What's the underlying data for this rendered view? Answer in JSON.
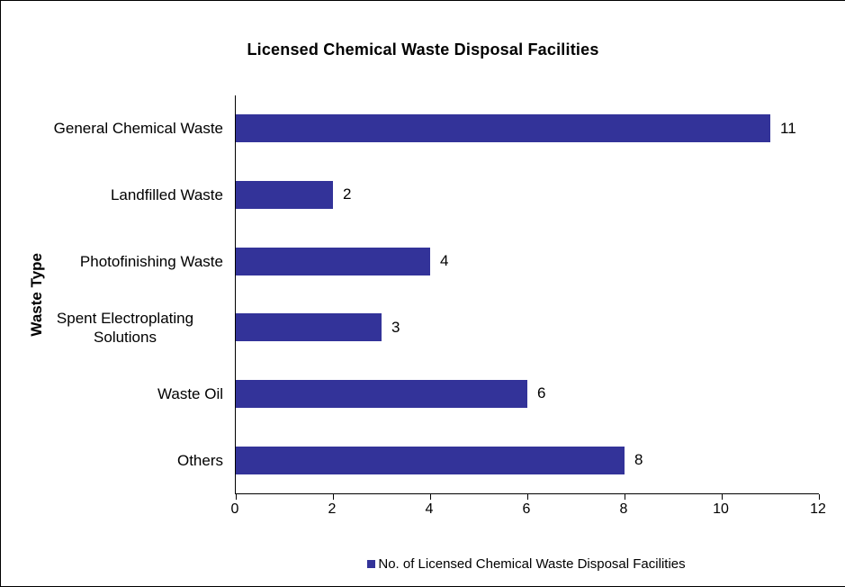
{
  "title": "Licensed Chemical Waste Disposal Facilities",
  "colors": {
    "bar": "#333399",
    "axis": "#000000",
    "text": "#000000",
    "background": "#ffffff"
  },
  "legend": {
    "label": "No. of Licensed Chemical Waste Disposal Facilities"
  },
  "chart_data": {
    "type": "bar",
    "orientation": "horizontal",
    "title": "Licensed Chemical Waste Disposal Facilities",
    "xlabel": "",
    "ylabel": "Waste Type",
    "categories": [
      "General Chemical Waste",
      "Landfilled Waste",
      "Photofinishing Waste",
      "Spent Electroplating Solutions",
      "Waste Oil",
      "Others"
    ],
    "series": [
      {
        "name": "No. of Licensed Chemical Waste Disposal Facilities",
        "values": [
          11,
          2,
          4,
          3,
          6,
          8
        ]
      }
    ],
    "xlim": [
      0,
      12
    ],
    "xticks": [
      0,
      2,
      4,
      6,
      8,
      10,
      12
    ],
    "grid": false,
    "data_labels": true,
    "legend_position": "bottom",
    "bar_color": "#333399"
  }
}
